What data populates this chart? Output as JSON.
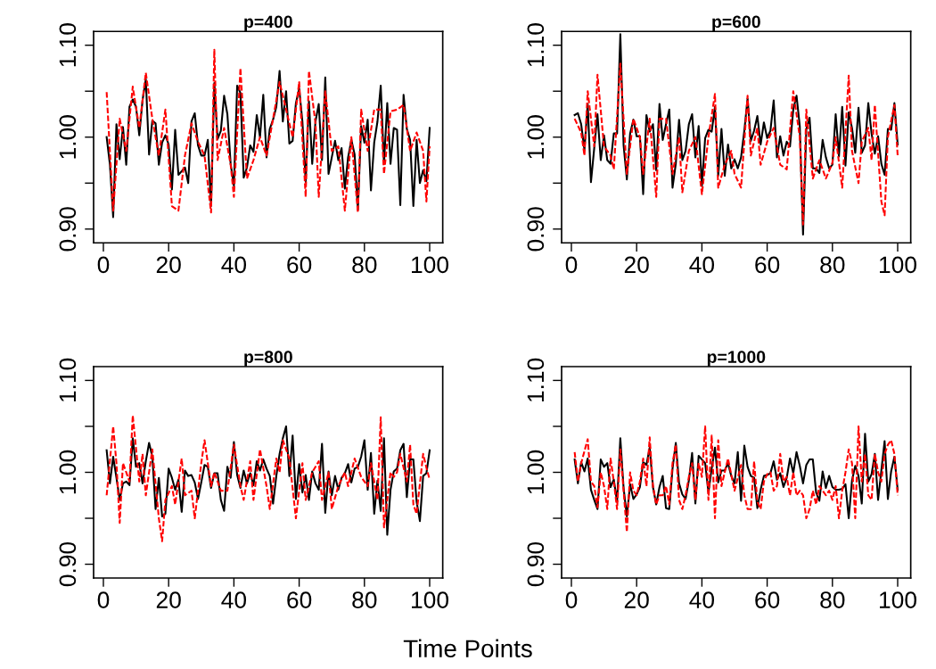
{
  "chart_data": [
    {
      "type": "line",
      "title": "p=400",
      "xlim": [
        -3,
        104
      ],
      "ylim": [
        0.885,
        1.115
      ],
      "xticks": [
        0,
        20,
        40,
        60,
        80,
        100
      ],
      "yticks": [
        {
          "value": 0.9,
          "label": "0.90"
        },
        {
          "value": 0.95,
          "label": null
        },
        {
          "value": 1.0,
          "label": "1.00"
        },
        {
          "value": 1.05,
          "label": null
        },
        {
          "value": 1.1,
          "label": "1.10"
        }
      ],
      "grid": false,
      "legend": false,
      "marker": "none",
      "series": [
        {
          "color": "#ff0000",
          "line_style": "dashed",
          "x": [
            1,
            3,
            5,
            7,
            9,
            11,
            13,
            15,
            17,
            19,
            21,
            23,
            25,
            27,
            29,
            31,
            33,
            34,
            35,
            37,
            39,
            40,
            42,
            44,
            46,
            48,
            50,
            52,
            54,
            56,
            58,
            60,
            62,
            63,
            65,
            66,
            68,
            70,
            72,
            74,
            76,
            78,
            79,
            81,
            83,
            85,
            86,
            88,
            90,
            92,
            94,
            96,
            98,
            99,
            100
          ],
          "values": [
            1.049,
            0.92,
            1.02,
            0.985,
            1.055,
            1.01,
            1.07,
            1.02,
            0.98,
            1.03,
            0.925,
            0.92,
            0.98,
            1.015,
            0.995,
            0.98,
            0.918,
            1.095,
            0.975,
            1.01,
            0.97,
            0.935,
            1.075,
            0.955,
            0.975,
            1.0,
            0.98,
            1.02,
            1.06,
            1.03,
            1.0,
            1.06,
            0.935,
            1.072,
            1.015,
            0.935,
            1.05,
            0.985,
            0.99,
            0.92,
            1.0,
            0.918,
            1.03,
            0.985,
            1.03,
            1.03,
            0.96,
            1.028,
            1.03,
            1.035,
            0.985,
            1.005,
            0.985,
            0.93,
            0.99
          ]
        },
        {
          "color": "#000000",
          "line_style": "solid",
          "x": [
            1,
            2,
            3,
            4,
            5,
            6,
            7,
            8,
            9,
            10,
            11,
            12,
            13,
            14,
            15,
            16,
            17,
            18,
            19,
            20,
            21,
            22,
            23,
            24,
            25,
            26,
            27,
            28,
            29,
            30,
            31,
            32,
            33,
            34,
            35,
            36,
            37,
            38,
            39,
            40,
            41,
            42,
            43,
            44,
            45,
            46,
            47,
            48,
            49,
            50,
            51,
            52,
            53,
            54,
            55,
            56,
            57,
            58,
            59,
            60,
            61,
            62,
            63,
            64,
            65,
            66,
            67,
            68,
            69,
            70,
            71,
            72,
            73,
            74,
            75,
            76,
            77,
            78,
            79,
            80,
            81,
            82,
            83,
            84,
            85,
            86,
            87,
            88,
            89,
            90,
            91,
            92,
            93,
            94,
            95,
            96,
            97,
            98,
            99,
            100
          ],
          "values": [
            1.0,
            0.97,
            0.913,
            1.014,
            0.976,
            1.011,
            0.97,
            1.033,
            1.041,
            1.033,
            1.002,
            1.04,
            1.063,
            0.981,
            1.018,
            1.015,
            0.97,
            0.994,
            1.002,
            0.992,
            0.943,
            1.008,
            0.959,
            0.963,
            0.967,
            0.95,
            1.017,
            1.026,
            0.991,
            0.98,
            0.98,
            0.997,
            0.925,
            1.059,
            0.998,
            1.007,
            1.045,
            1.025,
            0.971,
            0.947,
            1.056,
            1.048,
            0.956,
            0.967,
            0.991,
            0.984,
            1.024,
            1.0,
            1.046,
            0.978,
            1.009,
            1.019,
            1.033,
            1.072,
            1.017,
            1.05,
            0.993,
            0.996,
            1.037,
            1.053,
            1.017,
            0.951,
            1.039,
            0.971,
            1.017,
            1.036,
            0.975,
            1.065,
            0.96,
            0.978,
            0.996,
            0.975,
            0.988,
            0.944,
            0.978,
            0.997,
            0.981,
            0.921,
            1.012,
            0.994,
            1.019,
            0.942,
            0.994,
            1.017,
            1.056,
            0.971,
            1.037,
            0.971,
            1.01,
            1.008,
            0.926,
            1.046,
            1.009,
            0.997,
            0.925,
            0.997,
            0.95,
            0.964,
            0.952,
            1.01
          ]
        }
      ]
    },
    {
      "type": "line",
      "title": "p=600",
      "xlim": [
        -3,
        104
      ],
      "ylim": [
        0.885,
        1.115
      ],
      "xticks": [
        0,
        20,
        40,
        60,
        80,
        100
      ],
      "yticks": [
        {
          "value": 0.9,
          "label": "0.90"
        },
        {
          "value": 0.95,
          "label": null
        },
        {
          "value": 1.0,
          "label": "1.00"
        },
        {
          "value": 1.05,
          "label": null
        },
        {
          "value": 1.1,
          "label": "1.10"
        }
      ],
      "grid": false,
      "legend": false,
      "marker": "none",
      "series": [
        {
          "color": "#ff0000",
          "line_style": "dashed",
          "x": [
            1,
            3,
            4,
            5,
            7,
            8,
            10,
            12,
            13,
            15,
            17,
            19,
            21,
            22,
            24,
            26,
            27,
            29,
            31,
            33,
            34,
            36,
            38,
            40,
            42,
            44,
            45,
            47,
            49,
            50,
            52,
            54,
            55,
            57,
            58,
            60,
            62,
            64,
            66,
            68,
            70,
            71,
            72,
            74,
            76,
            78,
            80,
            81,
            83,
            85,
            86,
            88,
            89,
            91,
            92,
            93,
            95,
            96,
            97,
            99,
            100
          ],
          "values": [
            1.02,
            1.005,
            0.98,
            1.05,
            0.99,
            1.068,
            0.99,
            0.98,
            0.965,
            1.08,
            0.96,
            1.02,
            1.0,
            0.96,
            1.02,
            0.935,
            1.02,
            1.02,
            0.96,
            1.0,
            0.94,
            0.985,
            1.0,
            0.938,
            1.0,
            1.047,
            0.945,
            0.97,
            0.985,
            0.96,
            0.945,
            1.045,
            0.98,
            1.01,
            0.97,
            0.995,
            1.01,
            0.97,
            0.965,
            1.05,
            1.0,
            0.905,
            1.03,
            0.955,
            0.975,
            0.955,
            0.972,
            1.0,
            0.945,
            1.067,
            0.985,
            0.95,
            0.995,
            1.01,
            0.975,
            1.035,
            0.93,
            0.915,
            1.0,
            1.035,
            0.98
          ]
        },
        {
          "color": "#000000",
          "line_style": "solid",
          "x": [
            1,
            2,
            3,
            4,
            5,
            6,
            7,
            8,
            9,
            10,
            11,
            12,
            13,
            14,
            15,
            16,
            17,
            18,
            19,
            20,
            21,
            22,
            23,
            24,
            25,
            26,
            27,
            28,
            29,
            30,
            31,
            32,
            33,
            34,
            35,
            36,
            37,
            38,
            39,
            40,
            41,
            42,
            43,
            44,
            45,
            46,
            47,
            48,
            49,
            50,
            51,
            52,
            53,
            54,
            55,
            56,
            57,
            58,
            59,
            60,
            61,
            62,
            63,
            64,
            65,
            66,
            67,
            68,
            69,
            70,
            71,
            72,
            73,
            74,
            75,
            76,
            77,
            78,
            79,
            80,
            81,
            82,
            83,
            84,
            85,
            86,
            87,
            88,
            89,
            90,
            91,
            92,
            93,
            94,
            95,
            96,
            97,
            98,
            99,
            100
          ],
          "values": [
            1.024,
            1.026,
            1.014,
            0.986,
            1.036,
            0.951,
            0.988,
            1.025,
            0.975,
            1.002,
            0.975,
            0.971,
            1.004,
            1.004,
            1.112,
            0.991,
            0.954,
            1.004,
            1.019,
            1.001,
            1.001,
            0.938,
            1.024,
            1.006,
            1.014,
            0.964,
            1.036,
            0.997,
            1.014,
            1.03,
            0.945,
            0.971,
            1.019,
            0.975,
            0.985,
            1.014,
            1.025,
            0.978,
            1.012,
            0.947,
            0.999,
            1.008,
            1.006,
            1.033,
            0.958,
            1.009,
            0.958,
            0.992,
            0.966,
            0.976,
            0.966,
            0.978,
            1.007,
            1.042,
            0.996,
            1.007,
            1.023,
            0.992,
            1.016,
            0.999,
            1.007,
            1.04,
            0.978,
            1.001,
            0.98,
            0.995,
            0.99,
            1.03,
            1.045,
            1.012,
            0.894,
            1.009,
            1.021,
            0.966,
            0.966,
            0.961,
            0.997,
            0.978,
            0.966,
            0.97,
            1.025,
            0.979,
            1.033,
            0.969,
            1.027,
            1.01,
            0.983,
            1.032,
            0.983,
            0.991,
            1.037,
            1.004,
            0.982,
            1.001,
            0.971,
            0.959,
            1.009,
            1.008,
            1.037,
            0.992
          ]
        }
      ]
    },
    {
      "type": "line",
      "title": "p=800",
      "xlim": [
        -3,
        104
      ],
      "ylim": [
        0.885,
        1.115
      ],
      "xticks": [
        0,
        20,
        40,
        60,
        80,
        100
      ],
      "yticks": [
        {
          "value": 0.9,
          "label": "0.90"
        },
        {
          "value": 0.95,
          "label": null
        },
        {
          "value": 1.0,
          "label": "1.00"
        },
        {
          "value": 1.05,
          "label": null
        },
        {
          "value": 1.1,
          "label": "1.10"
        }
      ],
      "grid": false,
      "legend": false,
      "marker": "none",
      "series": [
        {
          "color": "#ff0000",
          "line_style": "dashed",
          "x": [
            1,
            3,
            4,
            5,
            6,
            7,
            8,
            9,
            11,
            12,
            13,
            15,
            17,
            18,
            19,
            21,
            22,
            24,
            25,
            27,
            28,
            30,
            31,
            33,
            34,
            36,
            38,
            40,
            42,
            43,
            45,
            46,
            48,
            50,
            51,
            53,
            54,
            55,
            57,
            59,
            61,
            62,
            64,
            66,
            67,
            69,
            70,
            72,
            74,
            75,
            77,
            79,
            81,
            82,
            84,
            85,
            86,
            88,
            89,
            90,
            91,
            93,
            94,
            95,
            96,
            98,
            99,
            100
          ],
          "values": [
            0.975,
            1.05,
            1.01,
            0.945,
            1.01,
            1.0,
            0.99,
            1.062,
            0.99,
            1.02,
            0.975,
            1.025,
            0.95,
            0.925,
            0.97,
            0.985,
            0.965,
            1.015,
            0.975,
            0.98,
            0.95,
            1.01,
            1.035,
            0.985,
            1.0,
            0.98,
            0.98,
            1.03,
            0.985,
            0.97,
            1.012,
            0.97,
            1.025,
            0.985,
            0.96,
            1.015,
            1.0,
            1.035,
            1.015,
            0.95,
            1.01,
            0.97,
            1.0,
            1.012,
            0.97,
            1.0,
            0.96,
            0.985,
            1.0,
            0.985,
            1.015,
            0.995,
            0.985,
            1.01,
            0.97,
            1.06,
            0.94,
            1.0,
            0.995,
            1.0,
            1.02,
            0.99,
            1.03,
            0.965,
            0.955,
            1.02,
            1.005,
            0.992
          ]
        },
        {
          "color": "#000000",
          "line_style": "solid",
          "x": [
            1,
            2,
            3,
            4,
            5,
            6,
            7,
            8,
            9,
            10,
            11,
            12,
            13,
            14,
            15,
            16,
            17,
            18,
            19,
            20,
            21,
            22,
            23,
            24,
            25,
            26,
            27,
            28,
            29,
            30,
            31,
            32,
            33,
            34,
            35,
            36,
            37,
            38,
            39,
            40,
            41,
            42,
            43,
            44,
            45,
            46,
            47,
            48,
            49,
            50,
            51,
            52,
            53,
            54,
            55,
            56,
            57,
            58,
            59,
            60,
            61,
            62,
            63,
            64,
            65,
            66,
            67,
            68,
            69,
            70,
            71,
            72,
            73,
            74,
            75,
            76,
            77,
            78,
            79,
            80,
            81,
            82,
            83,
            84,
            85,
            86,
            87,
            88,
            89,
            90,
            91,
            92,
            93,
            94,
            95,
            96,
            97,
            98,
            99,
            100
          ],
          "values": [
            1.024,
            0.988,
            1.017,
            0.994,
            0.97,
            0.988,
            0.99,
            0.986,
            1.037,
            1.006,
            1.01,
            0.988,
            1.012,
            1.032,
            1.017,
            0.96,
            0.994,
            0.952,
            0.955,
            1.004,
            0.994,
            0.981,
            0.992,
            0.957,
            1.002,
            0.996,
            0.997,
            0.989,
            0.971,
            0.989,
            1.008,
            1.006,
            0.983,
            0.999,
            0.999,
            0.97,
            0.958,
            1.006,
            0.994,
            1.033,
            0.997,
            0.983,
            1.002,
            0.988,
            0.999,
            0.986,
            1.012,
            1.002,
            1.014,
            1.004,
            0.996,
            0.966,
            0.996,
            1.02,
            1.037,
            1.05,
            0.996,
            1.04,
            0.971,
            1.009,
            0.978,
            0.997,
            0.97,
            1.001,
            0.988,
            0.981,
            1.031,
            0.956,
            1.001,
            0.975,
            0.996,
            0.981,
            0.994,
            0.999,
            1.009,
            0.989,
            1.004,
            1.006,
            1.017,
            1.035,
            0.981,
            1.021,
            0.955,
            0.991,
            0.958,
            1.037,
            0.932,
            0.981,
            1.001,
            1.004,
            1.024,
            1.031,
            0.973,
            1.014,
            1.014,
            0.968,
            0.947,
            0.996,
            0.999,
            1.024
          ]
        }
      ]
    },
    {
      "type": "line",
      "title": "p=1000",
      "xlabel": "Time Points",
      "xlim": [
        -3,
        104
      ],
      "ylim": [
        0.885,
        1.115
      ],
      "xticks": [
        0,
        20,
        40,
        60,
        80,
        100
      ],
      "yticks": [
        {
          "value": 0.9,
          "label": "0.90"
        },
        {
          "value": 0.95,
          "label": null
        },
        {
          "value": 1.0,
          "label": "1.00"
        },
        {
          "value": 1.05,
          "label": null
        },
        {
          "value": 1.1,
          "label": "1.10"
        }
      ],
      "grid": false,
      "legend": false,
      "marker": "none",
      "series": [
        {
          "color": "#ff0000",
          "line_style": "dashed",
          "x": [
            1,
            2,
            3,
            5,
            6,
            7,
            8,
            9,
            10,
            11,
            12,
            13,
            14,
            15,
            17,
            18,
            19,
            20,
            21,
            22,
            23,
            24,
            25,
            26,
            27,
            28,
            29,
            30,
            31,
            32,
            33,
            34,
            35,
            36,
            37,
            38,
            39,
            40,
            41,
            42,
            43,
            44,
            45,
            46,
            47,
            48,
            50,
            52,
            53,
            54,
            55,
            56,
            57,
            58,
            59,
            60,
            61,
            62,
            63,
            64,
            65,
            66,
            67,
            68,
            69,
            70,
            71,
            72,
            73,
            74,
            75,
            76,
            77,
            78,
            79,
            80,
            81,
            82,
            83,
            84,
            85,
            86,
            87,
            88,
            89,
            90,
            91,
            92,
            93,
            94,
            95,
            96,
            97,
            98,
            99,
            100
          ],
          "values": [
            1.022,
            0.99,
            1.01,
            1.036,
            0.99,
            0.985,
            0.962,
            1.0,
            0.985,
            0.96,
            1.015,
            0.99,
            0.96,
            1.025,
            0.935,
            1.0,
            0.98,
            0.975,
            0.99,
            1.015,
            0.985,
            1.038,
            0.985,
            0.965,
            0.975,
            0.975,
            0.985,
            0.965,
            1.01,
            1.03,
            0.97,
            0.96,
            0.975,
            0.995,
            1.01,
            0.97,
            1.01,
            0.995,
            1.05,
            0.97,
            1.04,
            0.95,
            1.035,
            0.985,
            1.0,
            1.015,
            0.98,
            1.008,
            0.975,
            0.96,
            0.96,
            1.012,
            0.968,
            0.96,
            0.99,
            0.998,
            1.0,
            0.98,
            0.985,
            1.02,
            0.99,
            0.995,
            0.975,
            1.0,
            0.975,
            0.98,
            0.975,
            0.95,
            0.96,
            0.98,
            0.965,
            0.985,
            0.98,
            0.975,
            0.98,
            0.97,
            0.985,
            0.95,
            0.98,
            1.0,
            1.025,
            1.01,
            0.95,
            1.05,
            0.99,
            1.02,
            0.975,
            0.97,
            1.02,
            1.0,
            0.99,
            1.02,
            1.03,
            1.035,
            1.02,
            0.975
          ]
        },
        {
          "color": "#000000",
          "line_style": "solid",
          "x": [
            1,
            2,
            3,
            4,
            5,
            6,
            7,
            8,
            9,
            10,
            11,
            12,
            13,
            14,
            15,
            16,
            17,
            18,
            19,
            20,
            21,
            22,
            23,
            24,
            25,
            26,
            27,
            28,
            29,
            30,
            31,
            32,
            33,
            34,
            35,
            36,
            37,
            38,
            39,
            40,
            41,
            42,
            43,
            44,
            45,
            46,
            47,
            48,
            49,
            50,
            51,
            52,
            53,
            54,
            55,
            56,
            57,
            58,
            59,
            60,
            61,
            62,
            63,
            64,
            65,
            66,
            67,
            68,
            69,
            70,
            71,
            72,
            73,
            74,
            75,
            76,
            77,
            78,
            79,
            80,
            81,
            82,
            83,
            84,
            85,
            86,
            87,
            88,
            89,
            90,
            91,
            92,
            93,
            94,
            95,
            96,
            97,
            98,
            99,
            100
          ],
          "values": [
            1.014,
            0.988,
            1.011,
            1.001,
            1.015,
            0.981,
            0.97,
            0.96,
            1.014,
            1.006,
            1.01,
            0.984,
            0.992,
            0.968,
            1.037,
            0.983,
            0.952,
            0.987,
            0.971,
            0.976,
            0.984,
            1.011,
            1.008,
            1.027,
            0.984,
            0.965,
            0.984,
            0.996,
            0.961,
            0.96,
            1.004,
            1.032,
            0.988,
            0.976,
            0.971,
            0.991,
            1.021,
            0.966,
            1.018,
            1.014,
            1.01,
            0.978,
            1.004,
            1.027,
            0.989,
            1.002,
            1.002,
            1.01,
            0.996,
            0.988,
            1.022,
            0.969,
            1.029,
            1.006,
            0.996,
            0.994,
            0.961,
            0.981,
            0.996,
            0.997,
            0.999,
            1.012,
            0.992,
            0.999,
            0.984,
            0.994,
            1.015,
            0.999,
            1.022,
            1.007,
            0.988,
            1.008,
            1.014,
            1.014,
            0.978,
            0.969,
            1.001,
            0.983,
            0.996,
            0.984,
            0.981,
            0.981,
            0.982,
            0.987,
            0.95,
            0.991,
            1.007,
            0.996,
            0.966,
            1.042,
            0.99,
            0.998,
            1.02,
            0.97,
            1.002,
            1.034,
            0.971,
            1.001,
            1.017,
            0.981
          ]
        }
      ]
    }
  ]
}
